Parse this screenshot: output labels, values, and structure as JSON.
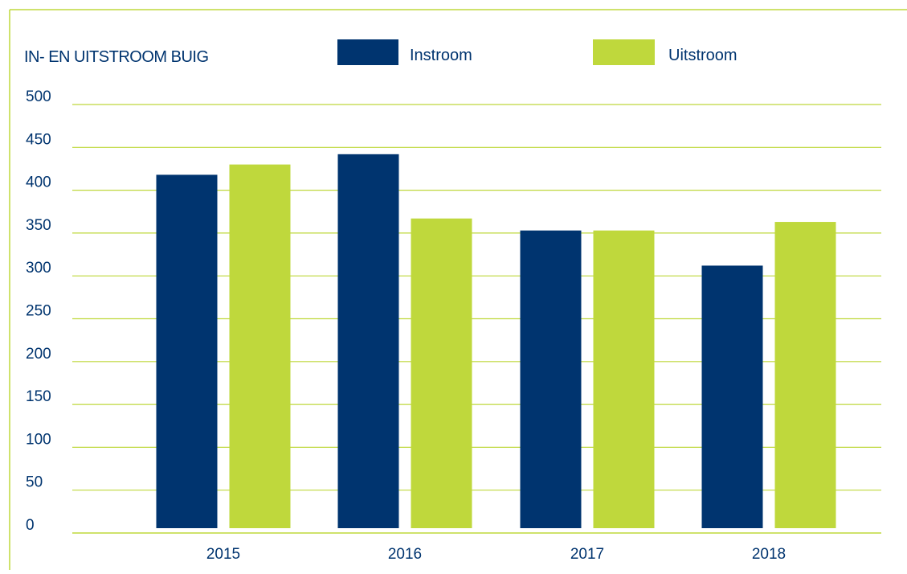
{
  "chart_data": {
    "type": "bar",
    "title": "IN- EN UITSTROOM BUIG",
    "categories": [
      "2015",
      "2016",
      "2017",
      "2018"
    ],
    "series": [
      {
        "name": "Instroom",
        "values": [
          418,
          442,
          353,
          312
        ],
        "color": "#00346f"
      },
      {
        "name": "Uitstroom",
        "values": [
          430,
          367,
          353,
          363
        ],
        "color": "#bfd83c"
      }
    ],
    "y_ticks": [
      "0",
      "50",
      "100",
      "150",
      "200",
      "250",
      "300",
      "350",
      "400",
      "450",
      "500"
    ],
    "ylim": [
      0,
      500
    ],
    "grid": true,
    "legend_position": "top",
    "colors": {
      "gridline": "#bfd83c",
      "text": "#00346f",
      "frame": "#bfd83c"
    }
  }
}
